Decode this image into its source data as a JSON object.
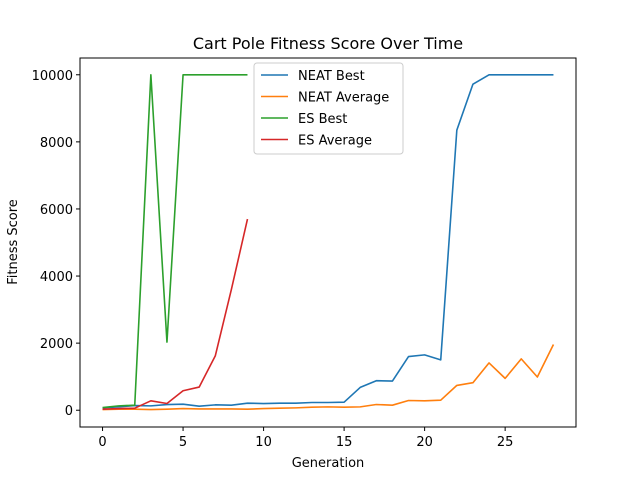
{
  "chart_data": {
    "type": "line",
    "title": "Cart Pole Fitness Score Over Time",
    "xlabel": "Generation",
    "ylabel": "Fitness Score",
    "xlim": [
      -1.4,
      29.4
    ],
    "ylim": [
      -500,
      10500
    ],
    "xticks": [
      0,
      5,
      10,
      15,
      20,
      25
    ],
    "yticks": [
      0,
      2000,
      4000,
      6000,
      8000,
      10000
    ],
    "grid": false,
    "legend_position": "top-center",
    "series": [
      {
        "name": "NEAT Best",
        "color": "#1f77b4",
        "x": [
          0,
          1,
          2,
          3,
          4,
          5,
          6,
          7,
          8,
          9,
          10,
          11,
          12,
          13,
          14,
          15,
          16,
          17,
          18,
          19,
          20,
          21,
          22,
          23,
          24,
          25,
          26,
          27,
          28
        ],
        "y": [
          70,
          100,
          140,
          130,
          170,
          180,
          120,
          160,
          150,
          210,
          200,
          210,
          210,
          230,
          230,
          240,
          680,
          880,
          870,
          1600,
          1650,
          1500,
          8350,
          9720,
          10000,
          10000,
          10000,
          10000,
          10000
        ]
      },
      {
        "name": "NEAT Average",
        "color": "#ff7f0e",
        "x": [
          0,
          1,
          2,
          3,
          4,
          5,
          6,
          7,
          8,
          9,
          10,
          11,
          12,
          13,
          14,
          15,
          16,
          17,
          18,
          19,
          20,
          21,
          22,
          23,
          24,
          25,
          26,
          27,
          28
        ],
        "y": [
          20,
          30,
          30,
          20,
          30,
          50,
          40,
          40,
          40,
          30,
          50,
          60,
          70,
          90,
          100,
          90,
          100,
          170,
          150,
          290,
          280,
          300,
          740,
          820,
          1410,
          950,
          1530,
          990,
          1960
        ]
      },
      {
        "name": "ES Best",
        "color": "#2ca02c",
        "x": [
          0,
          1,
          2,
          3,
          4,
          5,
          6,
          7,
          8,
          9
        ],
        "y": [
          80,
          130,
          150,
          10000,
          2030,
          10000,
          10000,
          10000,
          10000,
          10000
        ]
      },
      {
        "name": "ES Average",
        "color": "#d62728",
        "x": [
          0,
          1,
          2,
          3,
          4,
          5,
          6,
          7,
          8,
          9
        ],
        "y": [
          30,
          50,
          60,
          280,
          200,
          580,
          690,
          1620,
          3600,
          5700
        ]
      }
    ]
  }
}
